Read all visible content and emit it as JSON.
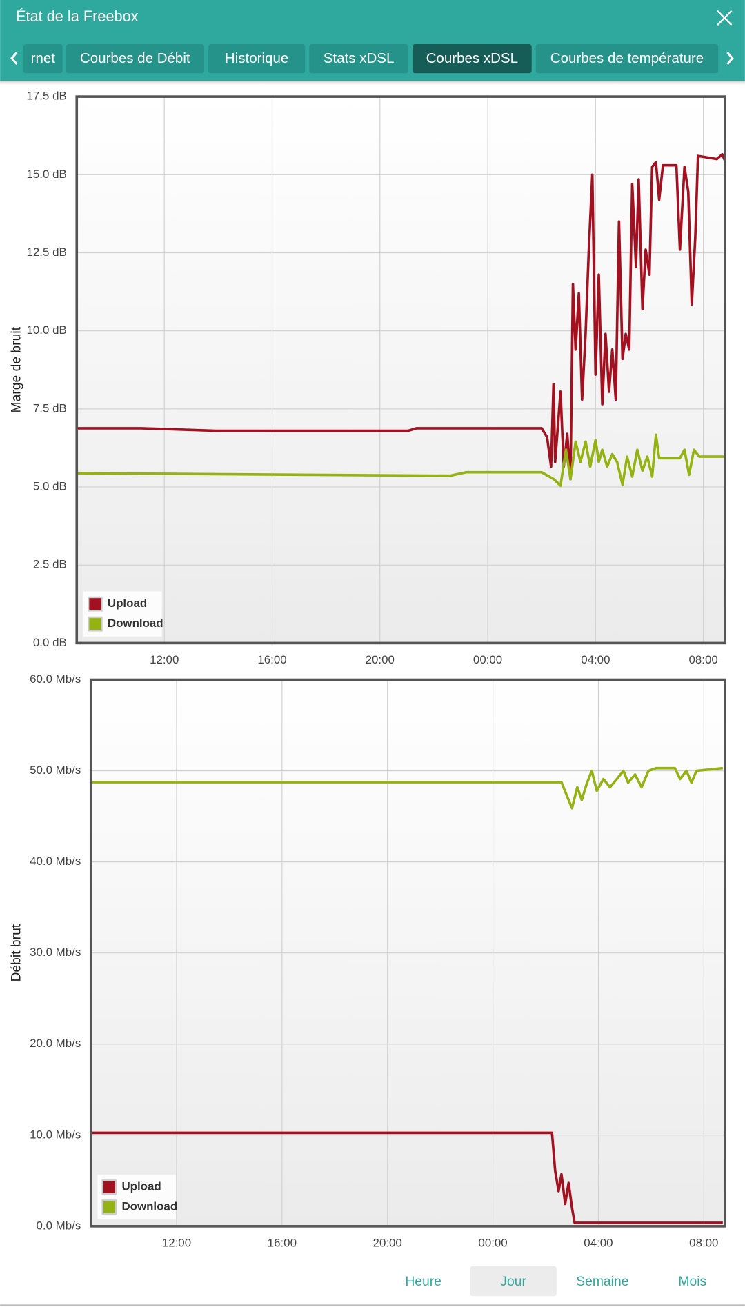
{
  "header": {
    "title": "État de la Freebox"
  },
  "tabs": [
    {
      "label": "rnet",
      "active": false
    },
    {
      "label": "Courbes de Débit",
      "active": false
    },
    {
      "label": "Historique",
      "active": false
    },
    {
      "label": "Stats xDSL",
      "active": false
    },
    {
      "label": "Courbes xDSL",
      "active": true
    },
    {
      "label": "Courbes de température",
      "active": false
    }
  ],
  "chart_data": [
    {
      "type": "line",
      "y_label": "Marge de bruit",
      "grid": true,
      "legend": "bottom-left",
      "xlim": [
        8.75,
        32.8
      ],
      "xticks": [
        {
          "value": 12,
          "label": "12:00"
        },
        {
          "value": 16,
          "label": "16:00"
        },
        {
          "value": 20,
          "label": "20:00"
        },
        {
          "value": 24,
          "label": "00:00"
        },
        {
          "value": 28,
          "label": "04:00"
        },
        {
          "value": 32,
          "label": "08:00"
        }
      ],
      "ylim": [
        0,
        17.5
      ],
      "yticks": [
        {
          "value": 0,
          "label": "0.0 dB"
        },
        {
          "value": 2.5,
          "label": "2.5 dB"
        },
        {
          "value": 5,
          "label": "5.0 dB"
        },
        {
          "value": 7.5,
          "label": "7.5 dB"
        },
        {
          "value": 10,
          "label": "10.0 dB"
        },
        {
          "value": 12.5,
          "label": "12.5 dB"
        },
        {
          "value": 15,
          "label": "15.0 dB"
        },
        {
          "value": 17.5,
          "label": "17.5 dB"
        }
      ],
      "series": [
        {
          "name": "Upload",
          "color": "#a3101f",
          "x": [
            8.75,
            11.13,
            13.92,
            21.05,
            21.36,
            26.0,
            26.2,
            26.35,
            26.44,
            26.5,
            26.7,
            26.82,
            26.95,
            27.07,
            27.16,
            27.26,
            27.38,
            27.5,
            27.63,
            27.75,
            27.88,
            28.0,
            28.12,
            28.25,
            28.37,
            28.5,
            28.62,
            28.75,
            28.87,
            29.0,
            29.12,
            29.25,
            29.36,
            29.5,
            29.6,
            29.74,
            29.86,
            30.0,
            30.1,
            30.24,
            30.36,
            30.5,
            31.0,
            31.13,
            31.3,
            31.44,
            31.57,
            31.7,
            31.8,
            32.5,
            32.7,
            32.8
          ],
          "values": [
            6.88,
            6.88,
            6.8,
            6.8,
            6.88,
            6.88,
            6.6,
            5.65,
            8.3,
            5.8,
            8.05,
            5.65,
            6.7,
            5.25,
            11.5,
            9.4,
            11.2,
            7.8,
            9.9,
            12.6,
            15.0,
            8.6,
            11.8,
            7.65,
            9.9,
            8.05,
            9.4,
            7.8,
            13.5,
            9.1,
            9.9,
            9.4,
            14.7,
            12.05,
            14.85,
            10.7,
            12.6,
            11.8,
            15.25,
            15.4,
            14.2,
            15.3,
            15.3,
            12.6,
            15.25,
            14.45,
            10.85,
            13.0,
            15.6,
            15.5,
            15.65,
            15.45
          ]
        },
        {
          "name": "Download",
          "color": "#94b212",
          "x": [
            8.75,
            22.6,
            23.2,
            26.0,
            26.45,
            26.7,
            26.9,
            27.07,
            27.26,
            27.44,
            27.63,
            27.8,
            28.0,
            28.12,
            28.25,
            28.43,
            28.62,
            28.8,
            29.0,
            29.17,
            29.36,
            29.55,
            29.74,
            29.92,
            30.1,
            30.24,
            30.36,
            31.13,
            31.3,
            31.47,
            31.65,
            31.85,
            32.8
          ],
          "values": [
            5.44,
            5.36,
            5.47,
            5.47,
            5.25,
            5.04,
            6.19,
            5.25,
            6.45,
            5.8,
            6.45,
            5.65,
            6.5,
            5.8,
            6.19,
            5.65,
            6.05,
            5.8,
            5.07,
            5.97,
            5.33,
            6.19,
            5.52,
            5.97,
            5.33,
            6.67,
            5.92,
            5.92,
            6.19,
            5.39,
            6.19,
            5.97,
            5.97
          ]
        }
      ]
    },
    {
      "type": "line",
      "y_label": "Débit brut",
      "grid": true,
      "legend": "bottom-left",
      "xlim": [
        8.75,
        32.8
      ],
      "xticks": [
        {
          "value": 12,
          "label": "12:00"
        },
        {
          "value": 16,
          "label": "16:00"
        },
        {
          "value": 20,
          "label": "20:00"
        },
        {
          "value": 24,
          "label": "00:00"
        },
        {
          "value": 28,
          "label": "04:00"
        },
        {
          "value": 32,
          "label": "08:00"
        }
      ],
      "ylim": [
        0,
        60
      ],
      "yticks": [
        {
          "value": 0,
          "label": "0.0 Mb/s"
        },
        {
          "value": 10,
          "label": "10.0 Mb/s"
        },
        {
          "value": 20,
          "label": "20.0 Mb/s"
        },
        {
          "value": 30,
          "label": "30.0 Mb/s"
        },
        {
          "value": 40,
          "label": "40.0 Mb/s"
        },
        {
          "value": 50,
          "label": "50.0 Mb/s"
        },
        {
          "value": 60,
          "label": "60.0 Mb/s"
        }
      ],
      "series": [
        {
          "name": "Upload",
          "color": "#a3101f",
          "x": [
            8.79,
            26.24,
            26.36,
            26.49,
            26.6,
            26.74,
            26.87,
            27.0,
            27.1,
            32.72
          ],
          "values": [
            10.25,
            10.25,
            6.1,
            3.85,
            5.7,
            2.45,
            4.75,
            2.0,
            0.37,
            0.37
          ]
        },
        {
          "name": "Download",
          "color": "#94b212",
          "x": [
            8.79,
            26.6,
            26.8,
            27.0,
            27.2,
            27.37,
            27.56,
            27.75,
            27.94,
            28.19,
            28.44,
            28.7,
            28.95,
            29.13,
            29.39,
            29.64,
            29.9,
            30.2,
            30.9,
            31.1,
            31.34,
            31.53,
            31.72,
            32.72
          ],
          "values": [
            48.75,
            48.75,
            47.3,
            45.9,
            48.2,
            46.8,
            48.6,
            50.0,
            47.8,
            49.1,
            48.2,
            49.1,
            50.0,
            48.7,
            49.6,
            48.2,
            50.0,
            50.3,
            50.3,
            49.1,
            50.0,
            48.7,
            50.0,
            50.3
          ]
        }
      ]
    }
  ],
  "period_buttons": [
    {
      "label": "Heure",
      "active": false
    },
    {
      "label": "Jour",
      "active": true
    },
    {
      "label": "Semaine",
      "active": false
    },
    {
      "label": "Mois",
      "active": false
    }
  ]
}
